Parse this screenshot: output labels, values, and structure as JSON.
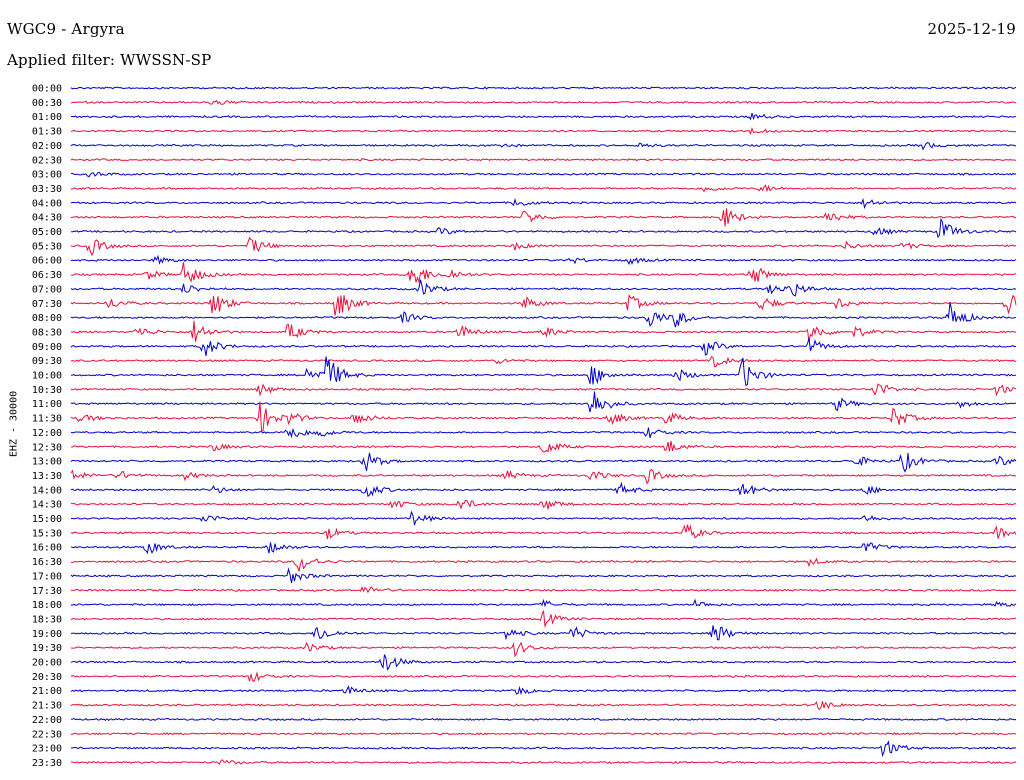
{
  "header": {
    "station": "WGC9 - Argyra",
    "date": "2025-12-19",
    "filter": "Applied filter: WWSSN-SP"
  },
  "chart_data": {
    "type": "line",
    "title": "WGC9 - Argyra",
    "subtitle": "Applied filter: WWSSN-SP",
    "ylabel": "EHZ - 30000",
    "xlabel": "",
    "colors": {
      "blue": "#0000cc",
      "red": "#e8103a"
    },
    "row_colors": [
      "blue",
      "red"
    ],
    "grid": false,
    "rows": [
      {
        "time": "00:00",
        "events": []
      },
      {
        "time": "00:30",
        "events": [
          [
            0.15,
            4
          ]
        ]
      },
      {
        "time": "01:00",
        "events": [
          [
            0.72,
            4
          ]
        ]
      },
      {
        "time": "01:30",
        "events": [
          [
            0.72,
            3
          ]
        ]
      },
      {
        "time": "02:00",
        "events": [
          [
            0.45,
            3
          ],
          [
            0.6,
            3
          ],
          [
            0.9,
            4
          ]
        ]
      },
      {
        "time": "02:30",
        "events": []
      },
      {
        "time": "03:00",
        "events": [
          [
            0.02,
            3
          ]
        ]
      },
      {
        "time": "03:30",
        "events": [
          [
            0.67,
            4
          ],
          [
            0.73,
            4
          ]
        ]
      },
      {
        "time": "04:00",
        "events": [
          [
            0.47,
            5
          ],
          [
            0.84,
            5
          ]
        ]
      },
      {
        "time": "04:30",
        "events": [
          [
            0.48,
            8
          ],
          [
            0.69,
            12
          ],
          [
            0.8,
            8
          ]
        ]
      },
      {
        "time": "05:00",
        "events": [
          [
            0.39,
            4
          ],
          [
            0.85,
            5
          ],
          [
            0.92,
            14
          ]
        ]
      },
      {
        "time": "05:30",
        "events": [
          [
            0.02,
            10
          ],
          [
            0.19,
            10
          ],
          [
            0.47,
            4
          ],
          [
            0.82,
            4
          ],
          [
            0.88,
            4
          ]
        ]
      },
      {
        "time": "06:00",
        "events": [
          [
            0.09,
            4
          ],
          [
            0.53,
            3
          ],
          [
            0.59,
            4
          ]
        ]
      },
      {
        "time": "06:30",
        "events": [
          [
            0.08,
            5
          ],
          [
            0.12,
            15
          ],
          [
            0.36,
            18
          ],
          [
            0.4,
            6
          ],
          [
            0.72,
            12
          ]
        ]
      },
      {
        "time": "07:00",
        "events": [
          [
            0.12,
            6
          ],
          [
            0.37,
            9
          ],
          [
            0.74,
            6
          ],
          [
            0.76,
            10
          ]
        ]
      },
      {
        "time": "07:30",
        "events": [
          [
            0.04,
            6
          ],
          [
            0.15,
            15
          ],
          [
            0.28,
            18
          ],
          [
            0.48,
            7
          ],
          [
            0.59,
            9
          ],
          [
            0.73,
            8
          ],
          [
            0.81,
            6
          ],
          [
            0.99,
            16
          ]
        ]
      },
      {
        "time": "08:00",
        "events": [
          [
            0.35,
            6
          ],
          [
            0.61,
            12
          ],
          [
            0.64,
            9
          ],
          [
            0.93,
            16
          ]
        ]
      },
      {
        "time": "08:30",
        "events": [
          [
            0.07,
            6
          ],
          [
            0.13,
            12
          ],
          [
            0.23,
            10
          ],
          [
            0.41,
            8
          ],
          [
            0.5,
            6
          ],
          [
            0.78,
            12
          ],
          [
            0.83,
            6
          ]
        ]
      },
      {
        "time": "09:00",
        "events": [
          [
            0.14,
            12
          ],
          [
            0.67,
            9
          ],
          [
            0.78,
            9
          ]
        ]
      },
      {
        "time": "09:30",
        "events": [
          [
            0.45,
            3
          ],
          [
            0.68,
            7
          ]
        ]
      },
      {
        "time": "10:00",
        "events": [
          [
            0.25,
            9
          ],
          [
            0.27,
            20
          ],
          [
            0.55,
            12
          ],
          [
            0.64,
            7
          ],
          [
            0.71,
            18
          ]
        ]
      },
      {
        "time": "10:30",
        "events": [
          [
            0.2,
            6
          ],
          [
            0.85,
            10
          ],
          [
            0.98,
            6
          ]
        ]
      },
      {
        "time": "11:00",
        "events": [
          [
            0.55,
            20
          ],
          [
            0.81,
            7
          ],
          [
            0.94,
            4
          ]
        ]
      },
      {
        "time": "11:30",
        "events": [
          [
            0.01,
            5
          ],
          [
            0.2,
            16
          ],
          [
            0.23,
            6
          ],
          [
            0.3,
            8
          ],
          [
            0.57,
            8
          ],
          [
            0.63,
            7
          ],
          [
            0.87,
            12
          ]
        ]
      },
      {
        "time": "12:00",
        "events": [
          [
            0.23,
            10
          ],
          [
            0.26,
            6
          ],
          [
            0.61,
            6
          ]
        ]
      },
      {
        "time": "12:30",
        "events": [
          [
            0.15,
            4
          ],
          [
            0.5,
            9
          ],
          [
            0.63,
            8
          ]
        ]
      },
      {
        "time": "13:00",
        "events": [
          [
            0.31,
            12
          ],
          [
            0.83,
            6
          ],
          [
            0.88,
            12
          ],
          [
            0.98,
            6
          ]
        ]
      },
      {
        "time": "13:30",
        "events": [
          [
            0.0,
            6
          ],
          [
            0.05,
            5
          ],
          [
            0.12,
            4
          ],
          [
            0.46,
            5
          ],
          [
            0.55,
            6
          ],
          [
            0.61,
            8
          ]
        ]
      },
      {
        "time": "14:00",
        "events": [
          [
            0.15,
            4
          ],
          [
            0.31,
            10
          ],
          [
            0.58,
            7
          ],
          [
            0.71,
            9
          ],
          [
            0.84,
            5
          ]
        ]
      },
      {
        "time": "14:30",
        "events": [
          [
            0.34,
            5
          ],
          [
            0.41,
            8
          ],
          [
            0.5,
            7
          ]
        ]
      },
      {
        "time": "15:00",
        "events": [
          [
            0.14,
            5
          ],
          [
            0.36,
            8
          ],
          [
            0.84,
            4
          ]
        ]
      },
      {
        "time": "15:30",
        "events": [
          [
            0.27,
            7
          ],
          [
            0.65,
            10
          ],
          [
            0.98,
            6
          ]
        ]
      },
      {
        "time": "16:00",
        "events": [
          [
            0.08,
            8
          ],
          [
            0.21,
            7
          ],
          [
            0.84,
            6
          ]
        ]
      },
      {
        "time": "16:30",
        "events": [
          [
            0.24,
            12
          ],
          [
            0.78,
            4
          ]
        ]
      },
      {
        "time": "17:00",
        "events": [
          [
            0.23,
            9
          ]
        ]
      },
      {
        "time": "17:30",
        "events": [
          [
            0.31,
            5
          ]
        ]
      },
      {
        "time": "18:00",
        "events": [
          [
            0.5,
            4
          ],
          [
            0.66,
            4
          ],
          [
            0.98,
            3
          ]
        ]
      },
      {
        "time": "18:30",
        "events": [
          [
            0.5,
            8
          ]
        ]
      },
      {
        "time": "19:00",
        "events": [
          [
            0.26,
            10
          ],
          [
            0.46,
            6
          ],
          [
            0.53,
            8
          ],
          [
            0.68,
            12
          ]
        ]
      },
      {
        "time": "19:30",
        "events": [
          [
            0.25,
            5
          ],
          [
            0.47,
            8
          ]
        ]
      },
      {
        "time": "20:00",
        "events": [
          [
            0.33,
            12
          ]
        ]
      },
      {
        "time": "20:30",
        "events": [
          [
            0.19,
            6
          ]
        ]
      },
      {
        "time": "21:00",
        "events": [
          [
            0.29,
            5
          ],
          [
            0.47,
            5
          ]
        ]
      },
      {
        "time": "21:30",
        "events": [
          [
            0.79,
            6
          ]
        ]
      },
      {
        "time": "22:00",
        "events": []
      },
      {
        "time": "22:30",
        "events": []
      },
      {
        "time": "23:00",
        "events": [
          [
            0.86,
            10
          ]
        ]
      },
      {
        "time": "23:30",
        "events": [
          [
            0.16,
            3
          ]
        ]
      }
    ]
  }
}
